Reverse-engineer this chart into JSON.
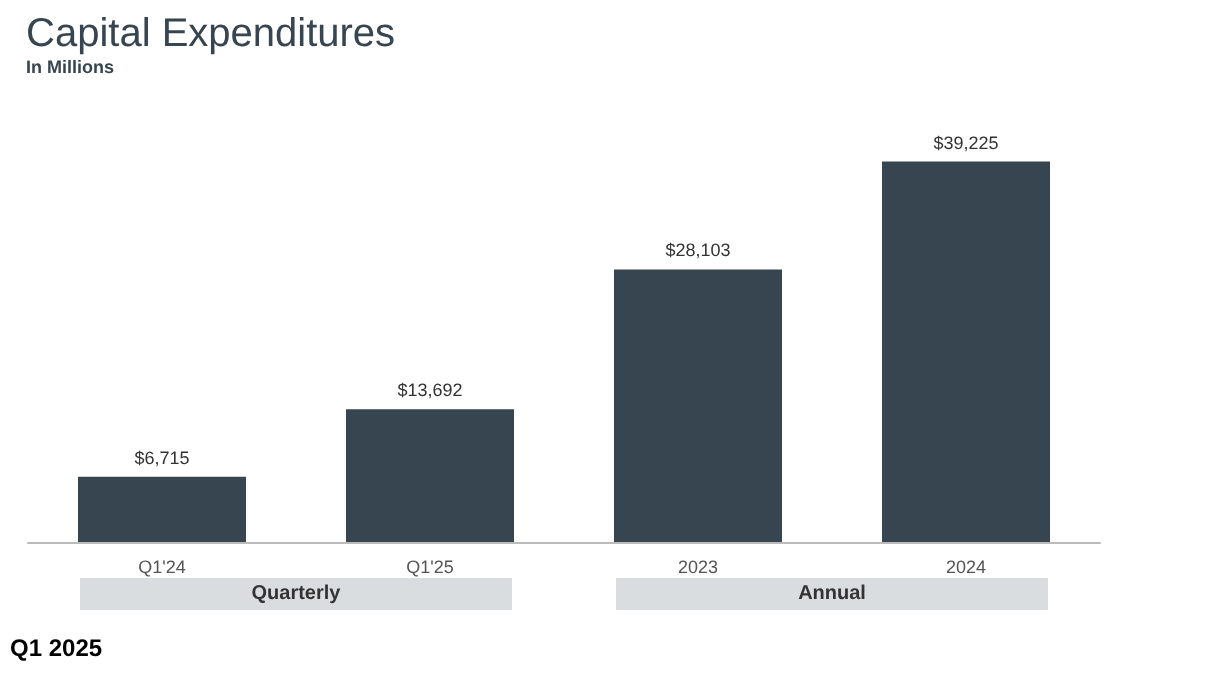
{
  "chart_data": {
    "type": "bar",
    "title": "Capital Expenditures",
    "subtitle": "In Millions",
    "categories": [
      "Q1'24",
      "Q1'25",
      "2023",
      "2024"
    ],
    "values": [
      6715,
      13692,
      28103,
      39225
    ],
    "value_labels": [
      "$6,715",
      "$13,692",
      "$28,103",
      "$39,225"
    ],
    "color": "#36454f",
    "annotations": [
      "Quarterly",
      "Annual",
      "Q1 2025"
    ]
  }
}
